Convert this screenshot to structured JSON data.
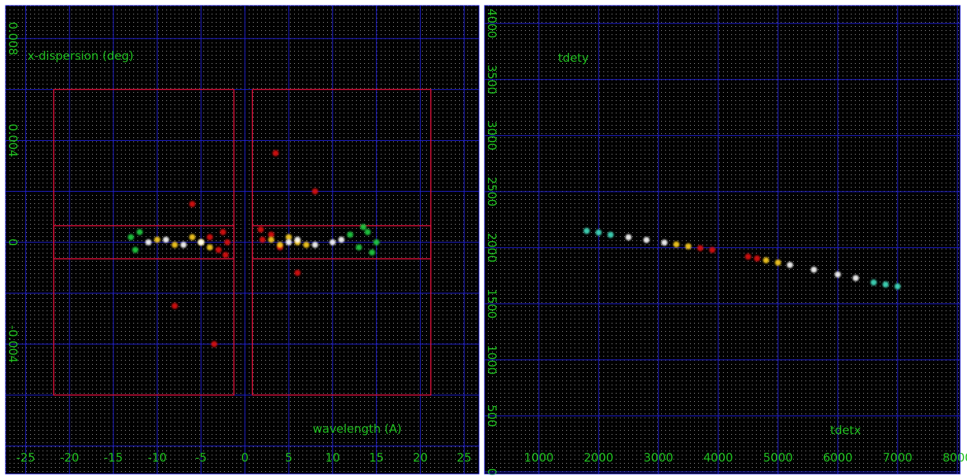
{
  "chart_data": [
    {
      "type": "scatter",
      "ylabel": "x-dispersion (deg)",
      "xlabel": "wavelength (A)",
      "xlim": [
        -27.3,
        26.7
      ],
      "ylim": [
        -0.0091,
        0.0093
      ],
      "xticks": [
        -25,
        -20,
        -15,
        -10,
        -5,
        0,
        5,
        10,
        15,
        20,
        25
      ],
      "yticks": [
        -0.004,
        0,
        0.004,
        0.008
      ],
      "ygrid": [
        -0.008,
        -0.006,
        -0.004,
        -0.002,
        0,
        0.002,
        0.004,
        0.006,
        0.008
      ],
      "grid_color": "#2020e0",
      "label_color": "#20c020",
      "background": "#000000",
      "region_color": "#e0103a",
      "regions": [
        {
          "x": [
            -21.8,
            -1.25
          ],
          "y": [
            -0.006,
            0.006
          ]
        },
        {
          "x": [
            0.86,
            21.2
          ],
          "y": [
            -0.006,
            0.006
          ]
        },
        {
          "x": [
            -21.8,
            -1.25
          ],
          "y": [
            -0.00065,
            0.00065
          ]
        },
        {
          "x": [
            0.86,
            21.2
          ],
          "y": [
            -0.00065,
            0.00065
          ]
        }
      ],
      "series": [
        {
          "color": "#e01010",
          "x": [
            -4,
            -3,
            -2.5,
            -2,
            2,
            3,
            4,
            -6,
            6,
            -8,
            8,
            -3.5,
            3.5,
            -2.2,
            1.8
          ],
          "y": [
            0.0002,
            -0.0003,
            0.0004,
            0,
            0.0001,
            0.0003,
            -0.0002,
            0.0015,
            -0.0012,
            -0.0025,
            0.002,
            -0.004,
            0.0035,
            -0.0005,
            0.0005
          ]
        },
        {
          "color": "#ffd020",
          "x": [
            -10,
            -8,
            -6,
            -5,
            -4,
            3,
            4,
            5,
            6,
            7
          ],
          "y": [
            0.0001,
            -0.0001,
            0.0002,
            0,
            -0.0002,
            0.0001,
            -0.0001,
            0.0002,
            0,
            -0.0001
          ]
        },
        {
          "color": "#ffffff",
          "x": [
            -11,
            -9,
            -7,
            -5,
            5,
            6,
            8,
            10,
            11
          ],
          "y": [
            0,
            0.0001,
            -0.0001,
            0,
            0,
            0.0001,
            -0.0001,
            0,
            0.0001
          ]
        },
        {
          "color": "#20d040",
          "x": [
            -13,
            -12.5,
            -12,
            12,
            13,
            14,
            15,
            14.5,
            13.5
          ],
          "y": [
            0.0002,
            -0.0003,
            0.0004,
            0.0003,
            -0.0002,
            0.0004,
            0,
            -0.0004,
            0.0006
          ]
        }
      ]
    },
    {
      "type": "scatter",
      "ylabel": "tdety",
      "xlabel": "tdetx",
      "xlim": [
        92,
        8046
      ],
      "ylim": [
        -18,
        4160
      ],
      "xticks": [
        1000,
        2000,
        3000,
        4000,
        5000,
        6000,
        7000,
        8000
      ],
      "yticks": [
        0,
        500,
        1000,
        1500,
        2000,
        2500,
        3000,
        3500,
        4000
      ],
      "ygrid": [
        0,
        500,
        1000,
        1500,
        2000,
        2500,
        3000,
        3500,
        4000
      ],
      "grid_color": "#2020e0",
      "label_color": "#20c020",
      "background": "#000000",
      "series": [
        {
          "color": "#40e0c0",
          "x": [
            1800,
            2000,
            2200,
            6600,
            6800,
            7000
          ],
          "y": [
            2150,
            2135,
            2115,
            1690,
            1672,
            1655
          ]
        },
        {
          "color": "#ffffff",
          "x": [
            2500,
            2800,
            3100,
            5200,
            5600,
            6000,
            6300
          ],
          "y": [
            2093,
            2069,
            2045,
            1846,
            1804,
            1761,
            1729
          ]
        },
        {
          "color": "#ffd020",
          "x": [
            3300,
            3500,
            4800,
            5000
          ],
          "y": [
            2029,
            2012,
            1888,
            1867
          ]
        },
        {
          "color": "#e01010",
          "x": [
            3700,
            3900,
            4500,
            4650
          ],
          "y": [
            1996,
            1980,
            1920,
            1904
          ]
        }
      ]
    }
  ]
}
